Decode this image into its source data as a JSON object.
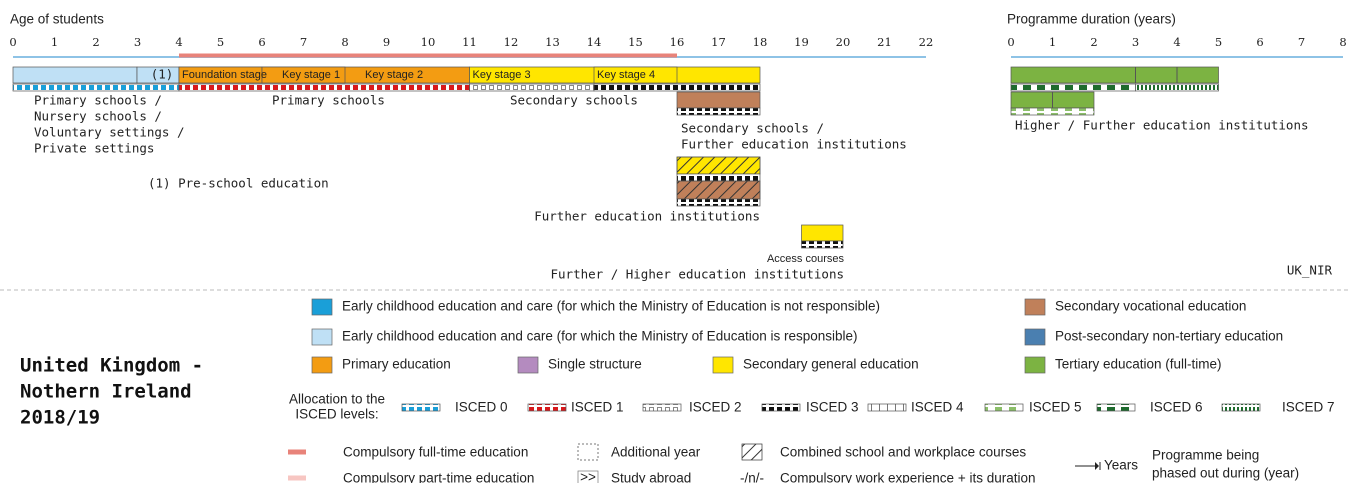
{
  "age_axis": {
    "title": "Age of students",
    "ticks": [
      0,
      1,
      2,
      3,
      4,
      5,
      6,
      7,
      8,
      9,
      10,
      11,
      12,
      13,
      14,
      15,
      16,
      17,
      18,
      19,
      20,
      21,
      22
    ]
  },
  "duration_axis": {
    "title": "Programme duration (years)",
    "ticks": [
      0,
      1,
      2,
      3,
      4,
      5,
      6,
      7,
      8
    ]
  },
  "blocks": {
    "pre_school_marker": "(1)",
    "foundation": "Foundation stage",
    "ks1": "Key stage 1",
    "ks2": "Key stage 2",
    "ks3": "Key stage 3",
    "ks4": "Key stage 4",
    "access": "Access courses"
  },
  "labels": {
    "early_years": [
      "Primary schools /",
      "Nursery schools /",
      "Voluntary settings /",
      "Private settings"
    ],
    "primary": "Primary schools",
    "secondary": "Secondary schools",
    "secondary_further": [
      "Secondary schools /",
      "Further education institutions"
    ],
    "further": "Further education institutions",
    "further_higher": "Further / Higher education institutions",
    "higher_further": "Higher / Further education institutions",
    "footnote": "(1) Pre-school education",
    "code": "UK_NIR"
  },
  "country": [
    "United Kingdom -",
    "Nothern Ireland",
    "2018/19"
  ],
  "legend": {
    "sectors": [
      {
        "name": "Early childhood education and care (for which the Ministry of Education is not responsible)",
        "color": "#1a9fd8"
      },
      {
        "name": "Early childhood education and care (for which the Ministry of Education is responsible)",
        "color": "#bfe0f5"
      },
      {
        "name": "Primary education",
        "color": "#f39c12"
      },
      {
        "name": "Single structure",
        "color": "#b48bbf"
      },
      {
        "name": "Secondary general education",
        "color": "#ffe600"
      },
      {
        "name": "Secondary vocational education",
        "color": "#c0805a"
      },
      {
        "name": "Post-secondary non-tertiary education",
        "color": "#4a7fb0"
      },
      {
        "name": "Tertiary education (full-time)",
        "color": "#7cb342"
      }
    ],
    "allocation_title": [
      "Allocation to the",
      "ISCED levels:"
    ],
    "isced": [
      "ISCED 0",
      "ISCED 1",
      "ISCED 2",
      "ISCED 3",
      "ISCED 4",
      "ISCED 5",
      "ISCED 6",
      "ISCED 7"
    ],
    "symbols": {
      "full_time": "Compulsory full-time education",
      "part_time": "Compulsory part-time education",
      "additional_year": "Additional year",
      "study_abroad_symbol": ">>",
      "study_abroad": "Study abroad",
      "combined": "Combined school and workplace courses",
      "work_experience_symbol": "-/n/-",
      "work_experience": "Compulsory work experience + its duration",
      "years": "Years",
      "phased_out": [
        "Programme being",
        "phased out during (year)"
      ]
    }
  }
}
